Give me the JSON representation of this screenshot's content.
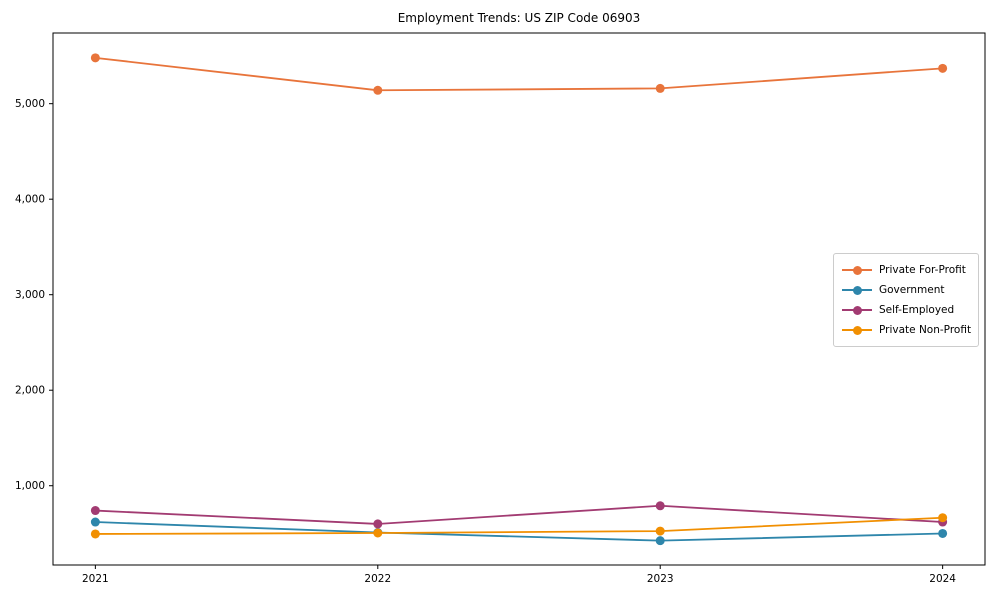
{
  "title": "Employment Trends: US ZIP Code 06903",
  "chart_data": {
    "type": "line",
    "title": "Employment Trends: US ZIP Code 06903",
    "x": [
      2021,
      2022,
      2023,
      2024
    ],
    "xtick_labels": [
      "2021",
      "2022",
      "2023",
      "2024"
    ],
    "series": [
      {
        "name": "Private For-Profit",
        "color": "#E8743B",
        "values": [
          5480,
          5140,
          5160,
          5370
        ]
      },
      {
        "name": "Government",
        "color": "#2E86AB",
        "values": [
          620,
          510,
          425,
          500
        ]
      },
      {
        "name": "Self-Employed",
        "color": "#A23B72",
        "values": [
          740,
          600,
          790,
          620
        ]
      },
      {
        "name": "Private Non-Profit",
        "color": "#F18F01",
        "values": [
          495,
          505,
          525,
          665
        ]
      }
    ],
    "xlabel": "",
    "ylabel": "",
    "ylim": [
      170,
      5740
    ],
    "yticks": [
      1000,
      2000,
      3000,
      4000,
      5000
    ],
    "ytick_labels": [
      "1,000",
      "2,000",
      "3,000",
      "4,000",
      "5,000"
    ],
    "grid": false,
    "legend_position": "center right"
  },
  "colors": {
    "background": "#ffffff",
    "axis": "#000000",
    "tick_text": "#000000",
    "legend_border": "#cccccc"
  }
}
